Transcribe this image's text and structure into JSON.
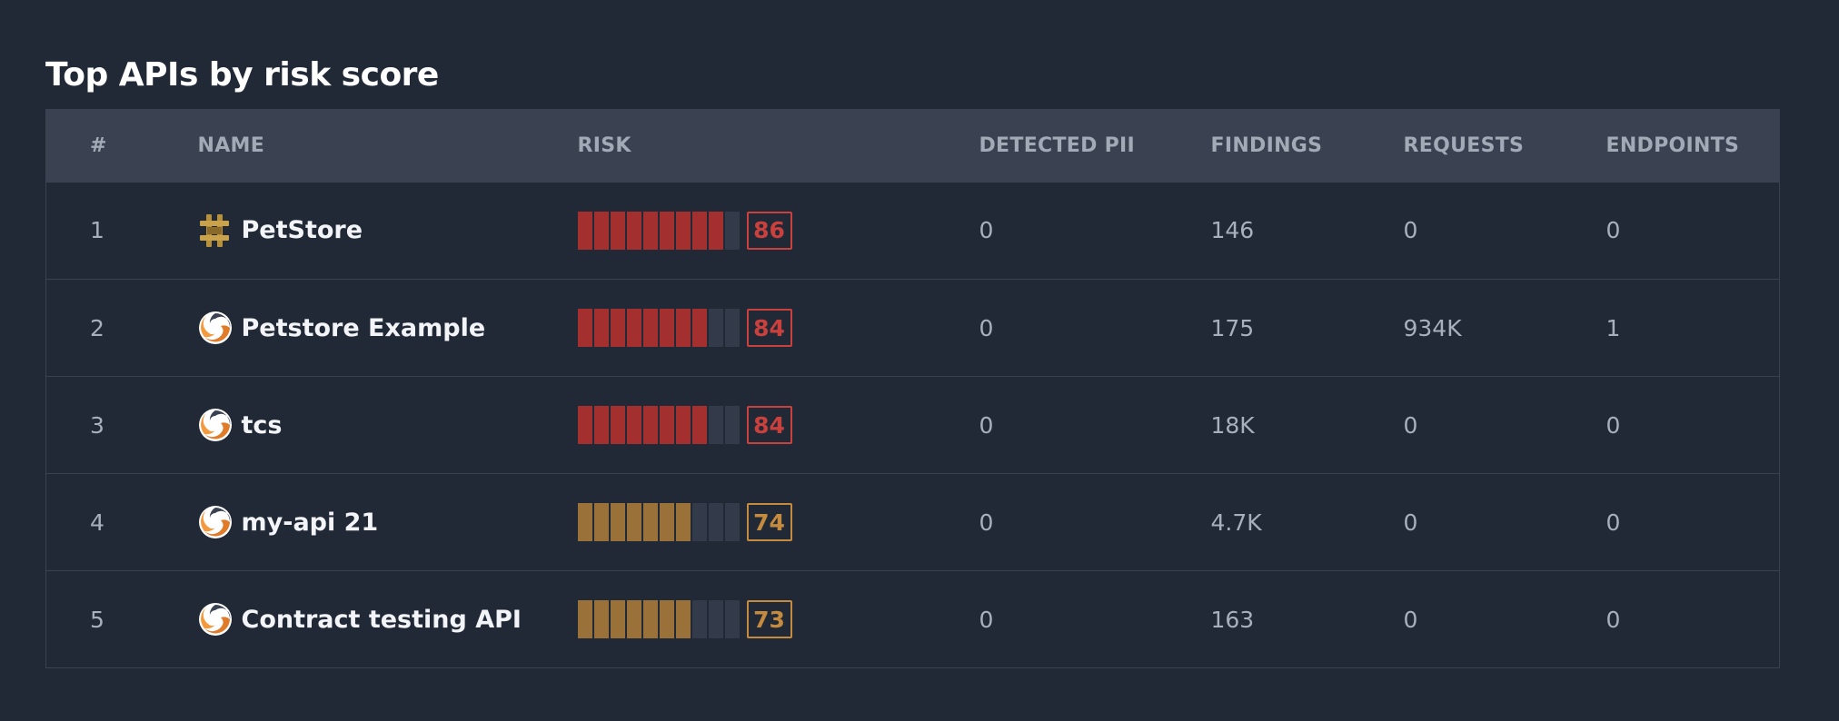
{
  "title": "Top APIs by risk score",
  "colors": {
    "high": "#a3302f",
    "high_text": "#c9403d",
    "medium": "#9a7239",
    "medium_text": "#c48b3f",
    "empty": "#333b4a"
  },
  "headers": {
    "num": "#",
    "name": "NAME",
    "risk": "RISK",
    "pii": "DETECTED PII",
    "findings": "FINDINGS",
    "requests": "REQUESTS",
    "endpoints": "ENDPOINTS"
  },
  "rows": [
    {
      "num": "1",
      "name": "PetStore",
      "icon": "swagger-icon",
      "risk": 86,
      "filled": 9,
      "level": "high",
      "pii": "0",
      "findings": "146",
      "requests": "0",
      "endpoints": "0"
    },
    {
      "num": "2",
      "name": "Petstore Example",
      "icon": "swirl-icon",
      "risk": 84,
      "filled": 8,
      "level": "high",
      "pii": "0",
      "findings": "175",
      "requests": "934K",
      "endpoints": "1"
    },
    {
      "num": "3",
      "name": "tcs",
      "icon": "swirl-icon",
      "risk": 84,
      "filled": 8,
      "level": "high",
      "pii": "0",
      "findings": "18K",
      "requests": "0",
      "endpoints": "0"
    },
    {
      "num": "4",
      "name": "my-api 21",
      "icon": "swirl-icon",
      "risk": 74,
      "filled": 7,
      "level": "medium",
      "pii": "0",
      "findings": "4.7K",
      "requests": "0",
      "endpoints": "0"
    },
    {
      "num": "5",
      "name": "Contract testing API",
      "icon": "swirl-icon",
      "risk": 73,
      "filled": 7,
      "level": "medium",
      "pii": "0",
      "findings": "163",
      "requests": "0",
      "endpoints": "0"
    }
  ],
  "total_segments": 10
}
